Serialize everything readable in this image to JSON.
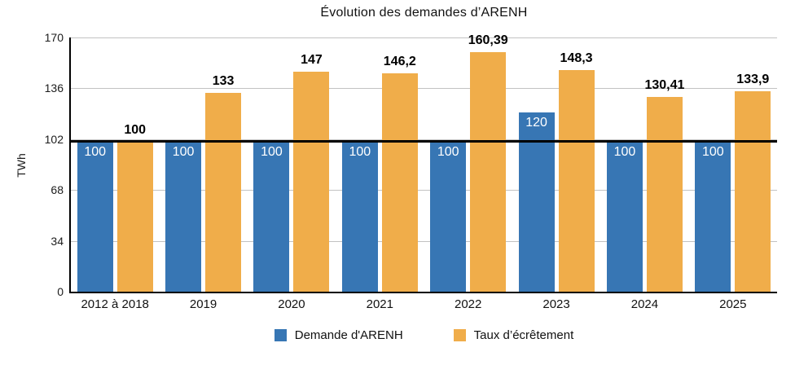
{
  "chart_data": {
    "type": "bar",
    "title": "Évolution des demandes d’ARENH",
    "ylabel": "TWh",
    "xlabel": "",
    "categories": [
      "2012 à 2018",
      "2019",
      "2020",
      "2021",
      "2022",
      "2023",
      "2024",
      "2025"
    ],
    "series": [
      {
        "name": "Demande d'ARENH",
        "color": "#3776B4",
        "values": [
          100,
          100,
          100,
          100,
          100,
          120,
          100,
          100
        ],
        "value_labels": [
          "100",
          "100",
          "100",
          "100",
          "100",
          "120",
          "100",
          "100"
        ],
        "label_style": "inside-white"
      },
      {
        "name": "Taux d’écrêtement",
        "color": "#F0AD4A",
        "values": [
          100,
          133,
          147,
          146.2,
          160.39,
          148.3,
          130.41,
          133.9
        ],
        "value_labels": [
          "100",
          "133",
          "147",
          "146,2",
          "160,39",
          "148,3",
          "130,41",
          "133,9"
        ],
        "label_style": "above-bold"
      }
    ],
    "yticks": [
      0,
      34,
      68,
      102,
      136,
      170
    ],
    "ylim": [
      0,
      170
    ],
    "reference_line": {
      "value": 100,
      "color": "#000000"
    },
    "grid": true,
    "grid_color": "#c2c2c2",
    "axis_color": "#000000",
    "legend_position": "bottom"
  }
}
